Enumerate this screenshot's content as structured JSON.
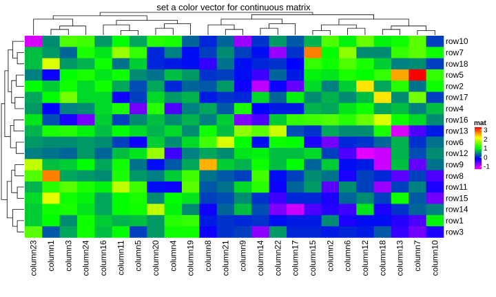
{
  "chart_data": {
    "type": "heatmap",
    "title": "set a color vector for continuous matrix",
    "rows": [
      "row10",
      "row7",
      "row18",
      "row5",
      "row2",
      "row17",
      "row4",
      "row16",
      "row13",
      "row6",
      "row12",
      "row9",
      "row8",
      "row11",
      "row15",
      "row14",
      "row1",
      "row3"
    ],
    "columns": [
      "column23",
      "column1",
      "column3",
      "column24",
      "column16",
      "column11",
      "column5",
      "column20",
      "column4",
      "column19",
      "column8",
      "column21",
      "column9",
      "column14",
      "column22",
      "column17",
      "column15",
      "column2",
      "column6",
      "column12",
      "column18",
      "column13",
      "column7",
      "column10"
    ],
    "values": [
      [
        -0.85,
        0.55,
        1.3,
        1.25,
        0.6,
        1.0,
        0.65,
        1.15,
        1.1,
        0.4,
        0.15,
        0.4,
        -0.6,
        0.2,
        0.6,
        0.35,
        0.7,
        1.3,
        0.95,
        1.4,
        0.95,
        1.05,
        1.35,
        0.25
      ],
      [
        0.75,
        0.6,
        0.4,
        1.1,
        0.9,
        1.6,
        1.2,
        0.15,
        0.5,
        0.05,
        0.25,
        0.55,
        0.25,
        0.05,
        -0.6,
        0.2,
        2.5,
        1.0,
        1.55,
        0.55,
        0.55,
        1.2,
        1.35,
        1.05
      ],
      [
        0.75,
        1.85,
        0.6,
        0.7,
        1.05,
        0.45,
        0.8,
        0.15,
        0.1,
        0.05,
        -0.2,
        0.45,
        0.05,
        0.15,
        0.2,
        0.0,
        1.2,
        1.05,
        1.3,
        1.1,
        0.8,
        0.5,
        0.55,
        0.25
      ],
      [
        0.5,
        -0.05,
        1.0,
        1.1,
        0.9,
        1.05,
        0.55,
        0.45,
        0.75,
        0.6,
        0.2,
        0.25,
        0.05,
        -0.25,
        0.4,
        0.1,
        0.95,
        0.9,
        1.1,
        1.0,
        1.2,
        2.35,
        3.1,
        1.2
      ],
      [
        1.0,
        0.8,
        1.05,
        0.85,
        1.05,
        0.65,
        0.3,
        0.65,
        0.15,
        0.4,
        0.35,
        0.6,
        -0.05,
        -0.75,
        -0.05,
        -0.4,
        0.85,
        0.5,
        0.8,
        2.1,
        0.65,
        1.15,
        0.45,
        1.05
      ],
      [
        0.65,
        1.0,
        1.45,
        0.85,
        0.85,
        -0.05,
        0.25,
        0.85,
        0.6,
        0.7,
        0.1,
        0.2,
        0.15,
        0.85,
        0.4,
        0.95,
        0.55,
        0.7,
        0.55,
        0.75,
        2.1,
        0.55,
        1.45,
        0.25
      ],
      [
        0.6,
        0.0,
        0.5,
        0.55,
        0.85,
        1.1,
        -0.45,
        1.15,
        -0.3,
        0.5,
        0.65,
        0.35,
        1.1,
        0.0,
        0.1,
        0.1,
        0.7,
        0.65,
        0.9,
        1.05,
        0.65,
        0.75,
        0.5,
        0.75
      ],
      [
        0.9,
        0.3,
        -0.1,
        -0.45,
        0.8,
        0.25,
        0.55,
        0.75,
        0.55,
        0.7,
        0.5,
        0.8,
        -0.5,
        -0.3,
        0.8,
        1.2,
        1.25,
        1.3,
        1.15,
        1.4,
        1.85,
        1.05,
        0.85,
        0.55
      ],
      [
        0.7,
        1.1,
        1.15,
        0.95,
        0.75,
        1.0,
        0.85,
        0.7,
        0.85,
        0.55,
        1.05,
        0.75,
        1.55,
        1.35,
        1.8,
        0.3,
        0.2,
        0.65,
        0.55,
        0.55,
        1.1,
        -0.85,
        -0.3,
        0.1
      ],
      [
        0.6,
        0.55,
        0.55,
        0.6,
        0.55,
        0.25,
        -0.05,
        0.8,
        0.55,
        0.85,
        1.25,
        1.85,
        1.0,
        0.05,
        1.05,
        1.0,
        -0.1,
        -0.45,
        0.15,
        0.2,
        0.4,
        0.7,
        0.2,
        0.45
      ],
      [
        0.5,
        0.45,
        0.4,
        0.6,
        0.4,
        0.75,
        0.9,
        1.6,
        -0.25,
        0.5,
        0.65,
        0.55,
        0.9,
        0.95,
        0.75,
        0.75,
        0.85,
        0.25,
        -0.3,
        -0.9,
        -0.8,
        0.7,
        0.3,
        0.55
      ],
      [
        1.75,
        0.75,
        0.8,
        1.0,
        0.65,
        1.05,
        0.45,
        0.05,
        0.35,
        0.65,
        2.3,
        0.8,
        0.7,
        1.05,
        0.75,
        1.0,
        0.4,
        0.8,
        0.05,
        0.1,
        -0.8,
        0.75,
        -0.4,
        0.45
      ],
      [
        1.3,
        2.5,
        0.65,
        0.6,
        0.55,
        1.1,
        0.6,
        0.5,
        0.8,
        1.25,
        0.45,
        0.35,
        0.25,
        1.25,
        0.05,
        0.25,
        0.55,
        0.45,
        -0.1,
        0.25,
        0.15,
        -0.35,
        0.25,
        -0.3
      ],
      [
        0.7,
        1.15,
        1.35,
        1.1,
        0.95,
        1.75,
        1.25,
        0.05,
        -0.05,
        1.35,
        0.35,
        0.45,
        0.85,
        1.15,
        -0.05,
        0.4,
        0.6,
        -0.35,
        0.55,
        0.25,
        -0.6,
        0.25,
        0.5,
        -0.1
      ],
      [
        0.85,
        1.9,
        1.05,
        0.95,
        0.65,
        1.0,
        1.1,
        0.55,
        1.0,
        0.9,
        0.25,
        0.3,
        0.55,
        0.2,
        -0.25,
        0.15,
        0.15,
        -0.1,
        0.4,
        0.55,
        0.25,
        1.05,
        0.35,
        -0.45
      ],
      [
        0.8,
        1.05,
        1.1,
        0.9,
        0.65,
        1.0,
        1.05,
        1.75,
        0.95,
        0.55,
        -0.05,
        0.4,
        0.75,
        0.3,
        -0.5,
        -0.8,
        -0.3,
        -0.15,
        -0.25,
        0.9,
        -0.1,
        0.2,
        0.4,
        0.5
      ],
      [
        0.8,
        1.0,
        0.55,
        1.05,
        0.8,
        0.7,
        0.75,
        0.6,
        1.15,
        1.2,
        0.1,
        0.2,
        0.15,
        0.2,
        0.05,
        0.1,
        0.1,
        0.55,
        -0.1,
        0.05,
        0.05,
        -0.15,
        -0.3,
        0.95
      ],
      [
        1.35,
        0.35,
        0.65,
        1.05,
        0.75,
        1.0,
        0.25,
        0.6,
        1.05,
        1.05,
        -0.05,
        0.2,
        0.25,
        -0.55,
        0.6,
        0.15,
        0.15,
        0.1,
        0.15,
        0.1,
        0.35,
        -0.2,
        -0.45,
        -0.1
      ]
    ],
    "color_scale": {
      "breaks": [
        -1,
        0,
        1,
        2,
        3
      ],
      "colors": [
        "#FF00FF",
        "#0000FF",
        "#00FF00",
        "#FFFF00",
        "#FF0000"
      ]
    },
    "legend": {
      "title": "mat",
      "ticks": [
        "3",
        "2",
        "1",
        "0",
        "-1"
      ],
      "placement": "right"
    },
    "row_dendrogram": "left",
    "column_dendrogram": "top"
  }
}
